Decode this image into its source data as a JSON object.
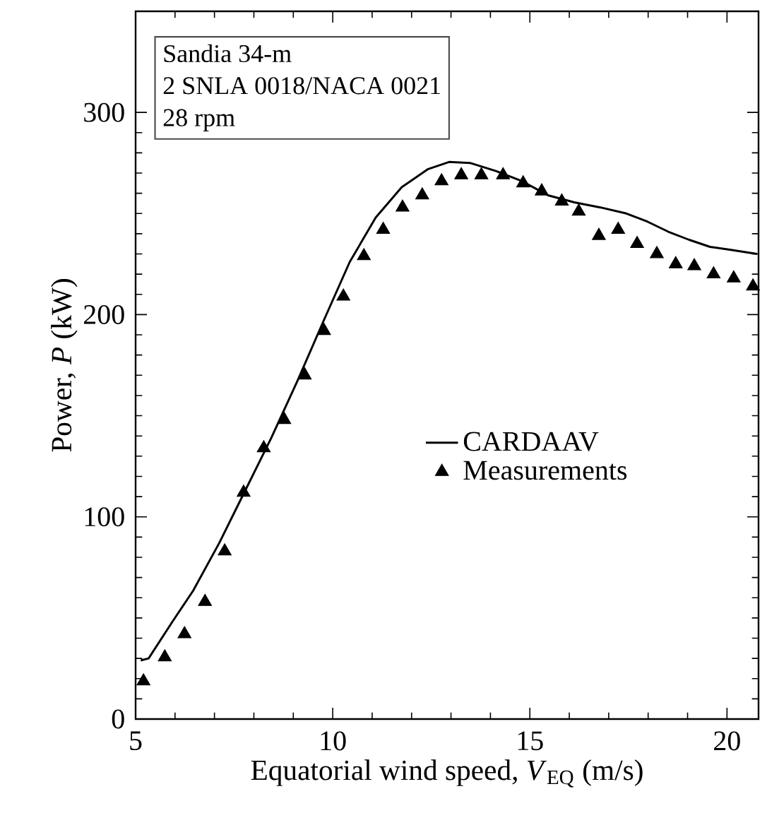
{
  "chart_data": {
    "type": "line",
    "xlabel": "Equatorial wind speed, *V*$_{EQ}$ (m/s)",
    "ylabel": "Power, *P* (kW)",
    "annotations": [
      "Sandia 34-m",
      "2 SNLA 0018/NACA 0021",
      "28 rpm"
    ],
    "xlim": [
      5,
      20.8
    ],
    "ylim": [
      0,
      350
    ],
    "xticks": [
      5,
      10,
      15,
      20
    ],
    "yticks": [
      0,
      100,
      200,
      300
    ],
    "legend": "center",
    "series": [
      {
        "name": "CARDAAV",
        "line_style": "solid",
        "color": "#000000",
        "x": [
          5.13,
          5.33,
          5.93,
          6.46,
          7.12,
          7.78,
          8.44,
          9.1,
          9.77,
          10.43,
          11.09,
          11.75,
          12.42,
          12.95,
          13.48,
          14.14,
          14.8,
          15.46,
          16.13,
          16.79,
          17.45,
          17.98,
          18.51,
          19.04,
          19.57,
          20.1,
          20.76
        ],
        "values": [
          29,
          30,
          48,
          63.5,
          87,
          113,
          139,
          167,
          197,
          226,
          248,
          263,
          272,
          275.5,
          275,
          271,
          266,
          259,
          255.5,
          253,
          250,
          246,
          241,
          237,
          233.5,
          232,
          230
        ]
      },
      {
        "name": "Measurements",
        "type": "scatter",
        "marker": "triangle",
        "color": "#000000",
        "x": [
          5.2,
          5.74,
          6.24,
          6.76,
          7.26,
          7.74,
          8.25,
          8.77,
          9.29,
          9.78,
          10.27,
          10.79,
          11.28,
          11.77,
          12.27,
          12.76,
          13.26,
          13.77,
          14.32,
          14.83,
          15.3,
          15.81,
          16.24,
          16.75,
          17.24,
          17.72,
          18.22,
          18.7,
          19.17,
          19.66,
          20.17,
          20.66
        ],
        "values": [
          18.7,
          30.6,
          42,
          58,
          83,
          112,
          134,
          148,
          170,
          192,
          209,
          229,
          242,
          253,
          259,
          266,
          269,
          269,
          269,
          265,
          261,
          256,
          251,
          239,
          242,
          235,
          230,
          225,
          224,
          220,
          218,
          214
        ]
      }
    ]
  }
}
